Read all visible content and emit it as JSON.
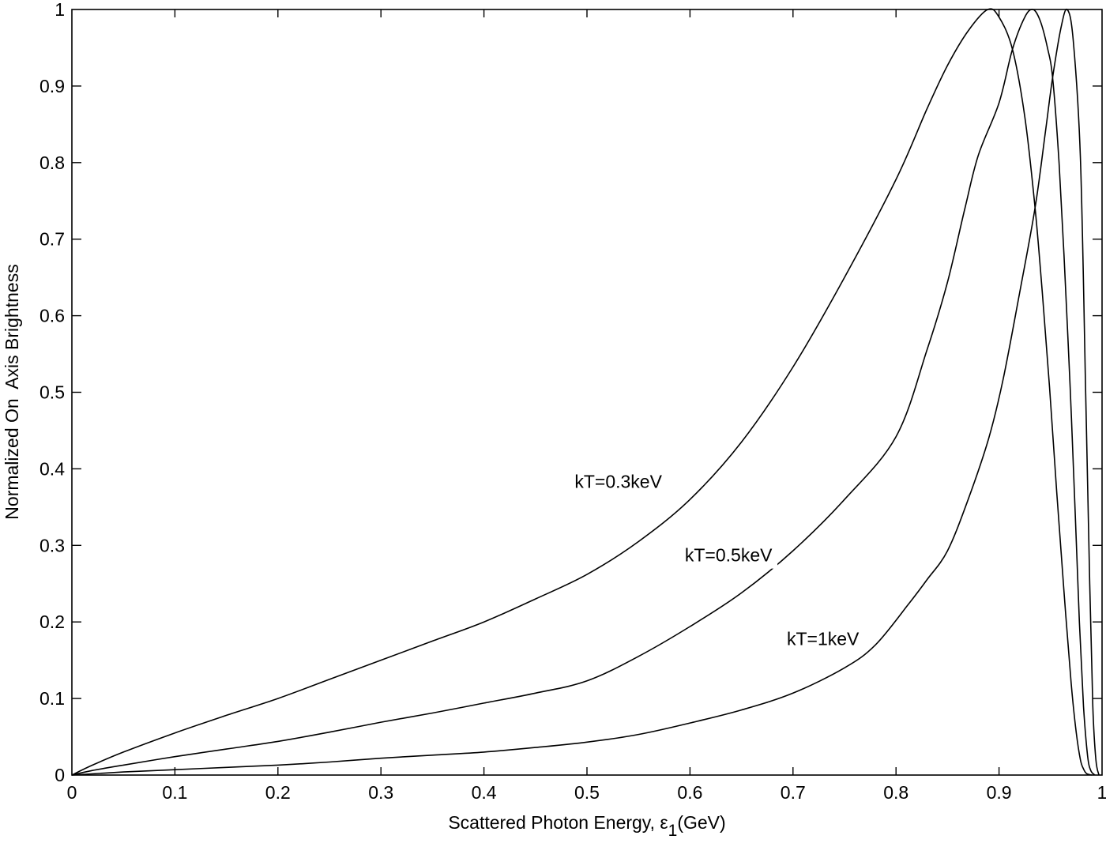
{
  "chart_data": {
    "type": "line",
    "title": "",
    "xlabel": "Scattered Photon Energy, ε",
    "xlabel_subscript": "1",
    "xlabel_suffix": "(GeV)",
    "ylabel": "Normalized On  Axis Brightness",
    "xlim": [
      0,
      1
    ],
    "ylim": [
      0,
      1
    ],
    "grid": false,
    "legend_position": "inline labels",
    "x_ticks": [
      0,
      0.1,
      0.2,
      0.3,
      0.4,
      0.5,
      0.6,
      0.7,
      0.8,
      0.9,
      1
    ],
    "x_tick_labels": [
      "0",
      "0.1",
      "0.2",
      "0.3",
      "0.4",
      "0.5",
      "0.6",
      "0.7",
      "0.8",
      "0.9",
      "1"
    ],
    "y_ticks": [
      0,
      0.1,
      0.2,
      0.3,
      0.4,
      0.5,
      0.6,
      0.7,
      0.8,
      0.9,
      1
    ],
    "y_tick_labels": [
      "0",
      "0.1",
      "0.2",
      "0.3",
      "0.4",
      "0.5",
      "0.6",
      "0.7",
      "0.8",
      "0.9",
      "1"
    ],
    "series": [
      {
        "name": "kT=0.3keV",
        "label_pos": [
          0.488,
          0.375
        ],
        "x": [
          0,
          0.02,
          0.05,
          0.1,
          0.15,
          0.2,
          0.25,
          0.3,
          0.35,
          0.4,
          0.45,
          0.5,
          0.55,
          0.6,
          0.65,
          0.7,
          0.75,
          0.8,
          0.83,
          0.85,
          0.87,
          0.889,
          0.9,
          0.913,
          0.925,
          0.935,
          0.942,
          0.949,
          0.956,
          0.963,
          0.97,
          0.975,
          0.979,
          0.982,
          0.985,
          0.99
        ],
        "y": [
          0,
          0.013,
          0.03,
          0.055,
          0.078,
          0.1,
          0.125,
          0.15,
          0.175,
          0.2,
          0.23,
          0.262,
          0.305,
          0.36,
          0.435,
          0.533,
          0.65,
          0.778,
          0.87,
          0.927,
          0.972,
          1.0,
          0.99,
          0.948,
          0.86,
          0.741,
          0.63,
          0.507,
          0.37,
          0.24,
          0.12,
          0.055,
          0.02,
          0.008,
          0.002,
          0
        ]
      },
      {
        "name": "kT=0.5keV",
        "label_pos": [
          0.595,
          0.279
        ],
        "x": [
          0,
          0.02,
          0.05,
          0.1,
          0.15,
          0.2,
          0.25,
          0.3,
          0.35,
          0.4,
          0.45,
          0.5,
          0.55,
          0.6,
          0.65,
          0.7,
          0.75,
          0.8,
          0.83,
          0.85,
          0.867,
          0.88,
          0.9,
          0.913,
          0.925,
          0.933,
          0.94,
          0.947,
          0.952,
          0.958,
          0.963,
          0.969,
          0.974,
          0.978,
          0.982,
          0.986,
          0.989,
          0.993
        ],
        "y": [
          0,
          0.006,
          0.013,
          0.024,
          0.034,
          0.044,
          0.056,
          0.069,
          0.081,
          0.094,
          0.107,
          0.123,
          0.155,
          0.194,
          0.238,
          0.293,
          0.36,
          0.442,
          0.555,
          0.644,
          0.741,
          0.81,
          0.878,
          0.948,
          0.99,
          1.0,
          0.985,
          0.95,
          0.911,
          0.806,
          0.68,
          0.507,
          0.34,
          0.2,
          0.09,
          0.025,
          0.006,
          0
        ]
      },
      {
        "name": "kT=1keV",
        "label_pos": [
          0.694,
          0.17
        ],
        "x": [
          0,
          0.05,
          0.1,
          0.15,
          0.2,
          0.25,
          0.3,
          0.35,
          0.4,
          0.45,
          0.5,
          0.55,
          0.6,
          0.65,
          0.7,
          0.75,
          0.78,
          0.812,
          0.83,
          0.85,
          0.87,
          0.89,
          0.904,
          0.92,
          0.935,
          0.945,
          0.952,
          0.96,
          0.966,
          0.972,
          0.979,
          0.984,
          0.988,
          0.991,
          0.994,
          0.997
        ],
        "y": [
          0,
          0.004,
          0.007,
          0.01,
          0.013,
          0.017,
          0.022,
          0.026,
          0.03,
          0.036,
          0.043,
          0.053,
          0.068,
          0.085,
          0.107,
          0.14,
          0.17,
          0.223,
          0.255,
          0.293,
          0.36,
          0.44,
          0.517,
          0.63,
          0.741,
          0.84,
          0.911,
          0.975,
          1.0,
          0.96,
          0.806,
          0.507,
          0.25,
          0.09,
          0.02,
          0
        ]
      }
    ]
  }
}
